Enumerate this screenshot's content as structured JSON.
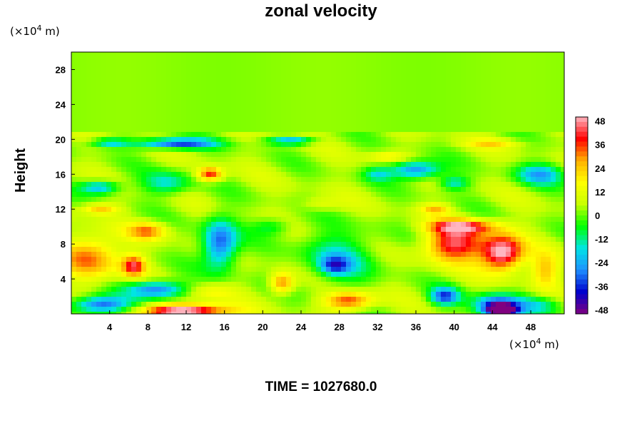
{
  "chart_data": {
    "type": "heatmap",
    "title": "zonal velocity",
    "ylabel": "Height",
    "x_unit_prefix": "(×10",
    "x_unit_exp": "4",
    "x_unit_suffix": " m)",
    "y_unit_prefix": "(×10",
    "y_unit_exp": "4",
    "y_unit_suffix": " m)",
    "xlim": [
      0,
      51.5
    ],
    "ylim": [
      0,
      30
    ],
    "xticks": [
      "4",
      "8",
      "12",
      "16",
      "20",
      "24",
      "28",
      "32",
      "36",
      "40",
      "44",
      "48"
    ],
    "yticks": [
      "4",
      "8",
      "12",
      "16",
      "20",
      "24",
      "28"
    ],
    "colorbar": {
      "range": [
        -50,
        50
      ],
      "ticks": [
        "48",
        "36",
        "24",
        "12",
        "0",
        "-12",
        "-24",
        "-36",
        "-48"
      ],
      "tick_values": [
        48,
        36,
        24,
        12,
        0,
        -12,
        -24,
        -36,
        -48
      ]
    },
    "colorscale": [
      "#800080",
      "#0000cd",
      "#1e90ff",
      "#00e5e5",
      "#00ff00",
      "#c8ff00",
      "#ffff00",
      "#ffb000",
      "#ff0000",
      "#ffb6c1"
    ],
    "background_above_21": 2,
    "features": [
      {
        "x": 3.0,
        "y": 1.0,
        "sx": 3.0,
        "sy": 1.0,
        "v": -38
      },
      {
        "x": 12.0,
        "y": 0.3,
        "sx": 4.5,
        "sy": 0.8,
        "v": 52
      },
      {
        "x": 2.0,
        "y": 6.5,
        "sx": 3.0,
        "sy": 2.5,
        "v": 28
      },
      {
        "x": 6.5,
        "y": 5.5,
        "sx": 1.2,
        "sy": 1.2,
        "v": 36
      },
      {
        "x": 8.0,
        "y": 9.5,
        "sx": 2.0,
        "sy": 1.0,
        "v": 26
      },
      {
        "x": 9.0,
        "y": 2.8,
        "sx": 3.0,
        "sy": 1.0,
        "v": -36
      },
      {
        "x": 15.5,
        "y": 8.0,
        "sx": 1.8,
        "sy": 2.8,
        "v": -38
      },
      {
        "x": 14.5,
        "y": 2.5,
        "sx": 2.5,
        "sy": 1.0,
        "v": 12
      },
      {
        "x": 22.0,
        "y": 3.5,
        "sx": 1.2,
        "sy": 1.2,
        "v": 30
      },
      {
        "x": 29.0,
        "y": 1.5,
        "sx": 2.5,
        "sy": 1.0,
        "v": 34
      },
      {
        "x": 28.0,
        "y": 6.5,
        "sx": 4.0,
        "sy": 3.0,
        "v": -18
      },
      {
        "x": 27.5,
        "y": 5.5,
        "sx": 1.5,
        "sy": 1.0,
        "v": -26
      },
      {
        "x": 40.0,
        "y": 8.0,
        "sx": 3.0,
        "sy": 2.0,
        "v": 40
      },
      {
        "x": 45.0,
        "y": 7.0,
        "sx": 2.2,
        "sy": 2.0,
        "v": 52
      },
      {
        "x": 41.0,
        "y": 10.0,
        "sx": 3.5,
        "sy": 0.8,
        "v": 34
      },
      {
        "x": 44.5,
        "y": 1.0,
        "sx": 2.5,
        "sy": 1.2,
        "v": -42
      },
      {
        "x": 45.0,
        "y": 0.4,
        "sx": 1.5,
        "sy": 0.6,
        "v": -58
      },
      {
        "x": 39.0,
        "y": 2.0,
        "sx": 1.5,
        "sy": 1.0,
        "v": -36
      },
      {
        "x": 49.5,
        "y": 5.0,
        "sx": 1.5,
        "sy": 2.0,
        "v": 20
      },
      {
        "x": 49.0,
        "y": 1.0,
        "sx": 2.5,
        "sy": 1.0,
        "v": -16
      },
      {
        "x": 11.0,
        "y": 19.5,
        "sx": 4.0,
        "sy": 0.6,
        "v": -40
      },
      {
        "x": 4.0,
        "y": 19.6,
        "sx": 2.0,
        "sy": 0.5,
        "v": -22
      },
      {
        "x": 23.0,
        "y": 19.8,
        "sx": 2.5,
        "sy": 0.4,
        "v": -30
      },
      {
        "x": 3.0,
        "y": 14.5,
        "sx": 2.0,
        "sy": 0.8,
        "v": -28
      },
      {
        "x": 14.5,
        "y": 16.0,
        "sx": 1.3,
        "sy": 0.8,
        "v": 36
      },
      {
        "x": 10.0,
        "y": 15.0,
        "sx": 2.5,
        "sy": 1.3,
        "v": -20
      },
      {
        "x": 36.0,
        "y": 16.5,
        "sx": 2.5,
        "sy": 1.0,
        "v": -36
      },
      {
        "x": 32.0,
        "y": 16.0,
        "sx": 1.5,
        "sy": 0.8,
        "v": -16
      },
      {
        "x": 49.0,
        "y": 16.0,
        "sx": 2.5,
        "sy": 1.2,
        "v": -26
      },
      {
        "x": 40.0,
        "y": 15.0,
        "sx": 1.5,
        "sy": 0.8,
        "v": -20
      },
      {
        "x": 3.0,
        "y": 12.0,
        "sx": 2.0,
        "sy": 0.6,
        "v": 20
      },
      {
        "x": 38.0,
        "y": 12.0,
        "sx": 1.5,
        "sy": 0.6,
        "v": 20
      },
      {
        "x": 33.0,
        "y": 18.0,
        "sx": 2.0,
        "sy": 0.6,
        "v": 14
      },
      {
        "x": 44.0,
        "y": 19.5,
        "sx": 3.0,
        "sy": 0.5,
        "v": 14
      },
      {
        "x": 21.0,
        "y": 10.0,
        "sx": 2.0,
        "sy": 1.0,
        "v": -14
      },
      {
        "x": 26.0,
        "y": 12.5,
        "sx": 2.0,
        "sy": 0.8,
        "v": 10
      }
    ]
  },
  "time_label": "TIME = 1027680.0"
}
